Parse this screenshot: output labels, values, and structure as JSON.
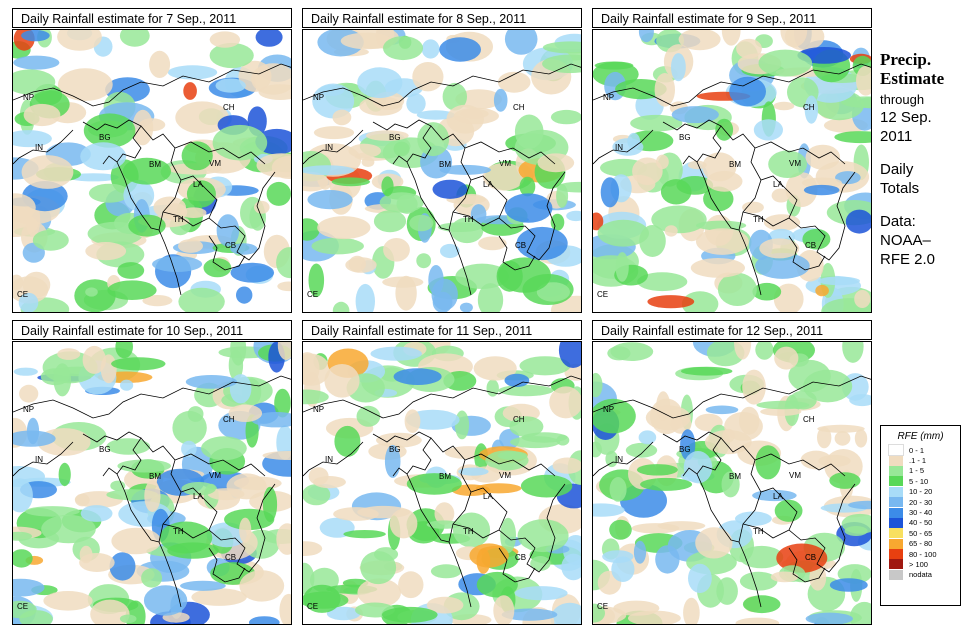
{
  "panels": [
    {
      "title": "Daily Rainfall estimate for  7 Sep., 2011",
      "seed": 7
    },
    {
      "title": "Daily Rainfall estimate for  8 Sep., 2011",
      "seed": 8
    },
    {
      "title": "Daily Rainfall estimate for  9 Sep., 2011",
      "seed": 9
    },
    {
      "title": "Daily Rainfall estimate for  10 Sep., 2011",
      "seed": 10
    },
    {
      "title": "Daily Rainfall estimate for  11 Sep., 2011",
      "seed": 11
    },
    {
      "title": "Daily Rainfall estimate for  12 Sep., 2011",
      "seed": 12
    }
  ],
  "country_labels": [
    "NP",
    "CH",
    "IN",
    "BG",
    "BM",
    "VM",
    "LA",
    "TH",
    "CB",
    "CE"
  ],
  "sidebar": {
    "heading_1": "Precip.",
    "heading_2": "Estimate",
    "through": "through",
    "date_1": "12 Sep.",
    "date_2": "2011",
    "daily_1": "Daily",
    "daily_2": "Totals",
    "data_1": "Data:",
    "data_2": "NOAA–",
    "data_3": "RFE 2.0"
  },
  "legend": {
    "title": "RFE (mm)",
    "items": [
      {
        "label": "0 - 1",
        "color": "#ffffff"
      },
      {
        "label": ".1 - 1",
        "color": "#f0dcc0"
      },
      {
        "label": "1 - 5",
        "color": "#98e898"
      },
      {
        "label": "5 - 10",
        "color": "#58d858"
      },
      {
        "label": "10 - 20",
        "color": "#a8dcf8"
      },
      {
        "label": "20 - 30",
        "color": "#78b8f0"
      },
      {
        "label": "30 - 40",
        "color": "#3c8ce8"
      },
      {
        "label": "40 - 50",
        "color": "#1c54d8"
      },
      {
        "label": "50 - 65",
        "color": "#f8e060"
      },
      {
        "label": "65 - 80",
        "color": "#f8a830"
      },
      {
        "label": "80 - 100",
        "color": "#e84010"
      },
      {
        "label": "> 100",
        "color": "#a01810"
      },
      {
        "label": "nodata",
        "color": "#c8c8c8"
      }
    ]
  }
}
